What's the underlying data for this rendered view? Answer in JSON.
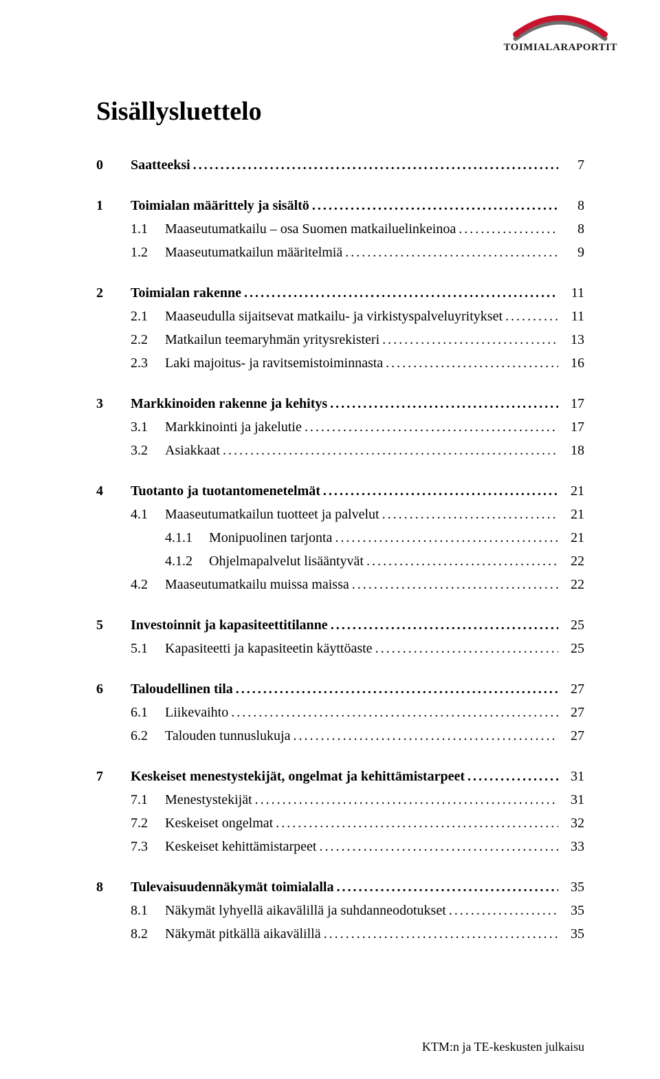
{
  "logo_text": "TOIMIALARAPORTIT",
  "logo_colors": {
    "red": "#c9132d",
    "grey": "#6d6d6d"
  },
  "title": "Sisällysluettelo",
  "footer": "KTM:n ja TE-keskusten julkaisu",
  "leader_glyph": ".",
  "toc": [
    {
      "level": 0,
      "num": "0",
      "label": "Saatteeksi",
      "page": "7"
    },
    {
      "level": 0,
      "num": "1",
      "label": "Toimialan määrittely ja sisältö",
      "page": "8"
    },
    {
      "level": 1,
      "num": "1.1",
      "label": "Maaseutumatkailu – osa Suomen matkailuelinkeinoa",
      "page": "8"
    },
    {
      "level": 1,
      "num": "1.2",
      "label": "Maaseutumatkailun määritelmiä",
      "page": "9"
    },
    {
      "level": 0,
      "num": "2",
      "label": "Toimialan rakenne",
      "page": "11"
    },
    {
      "level": 1,
      "num": "2.1",
      "label": "Maaseudulla sijaitsevat matkailu- ja virkistyspalveluyritykset",
      "page": "11"
    },
    {
      "level": 1,
      "num": "2.2",
      "label": "Matkailun teemaryhmän yritysrekisteri",
      "page": "13"
    },
    {
      "level": 1,
      "num": "2.3",
      "label": "Laki majoitus- ja ravitsemistoiminnasta",
      "page": "16"
    },
    {
      "level": 0,
      "num": "3",
      "label": "Markkinoiden rakenne ja kehitys",
      "page": "17"
    },
    {
      "level": 1,
      "num": "3.1",
      "label": "Markkinointi ja jakelutie",
      "page": "17"
    },
    {
      "level": 1,
      "num": "3.2",
      "label": "Asiakkaat",
      "page": "18"
    },
    {
      "level": 0,
      "num": "4",
      "label": "Tuotanto ja tuotantomenetelmät",
      "page": "21"
    },
    {
      "level": 1,
      "num": "4.1",
      "label": "Maaseutumatkailun tuotteet ja palvelut",
      "page": "21"
    },
    {
      "level": 2,
      "num": "4.1.1",
      "label": "Monipuolinen tarjonta",
      "page": "21"
    },
    {
      "level": 2,
      "num": "4.1.2",
      "label": "Ohjelmapalvelut lisääntyvät",
      "page": "22"
    },
    {
      "level": 1,
      "num": "4.2",
      "label": "Maaseutumatkailu muissa maissa",
      "page": "22"
    },
    {
      "level": 0,
      "num": "5",
      "label": "Investoinnit ja kapasiteettitilanne",
      "page": "25"
    },
    {
      "level": 1,
      "num": "5.1",
      "label": "Kapasiteetti ja kapasiteetin käyttöaste",
      "page": "25"
    },
    {
      "level": 0,
      "num": "6",
      "label": "Taloudellinen tila",
      "page": "27"
    },
    {
      "level": 1,
      "num": "6.1",
      "label": "Liikevaihto",
      "page": "27"
    },
    {
      "level": 1,
      "num": "6.2",
      "label": "Talouden tunnuslukuja",
      "page": "27"
    },
    {
      "level": 0,
      "num": "7",
      "label": "Keskeiset menestystekijät, ongelmat ja kehittämistarpeet",
      "page": "31"
    },
    {
      "level": 1,
      "num": "7.1",
      "label": "Menestystekijät",
      "page": "31"
    },
    {
      "level": 1,
      "num": "7.2",
      "label": "Keskeiset ongelmat",
      "page": "32"
    },
    {
      "level": 1,
      "num": "7.3",
      "label": "Keskeiset kehittämistarpeet",
      "page": "33"
    },
    {
      "level": 0,
      "num": "8",
      "label": "Tulevaisuudennäkymät toimialalla",
      "page": "35"
    },
    {
      "level": 1,
      "num": "8.1",
      "label": "Näkymät lyhyellä aikavälillä ja suhdanneodotukset",
      "page": "35"
    },
    {
      "level": 1,
      "num": "8.2",
      "label": "Näkymät pitkällä aikavälillä",
      "page": "35"
    }
  ]
}
